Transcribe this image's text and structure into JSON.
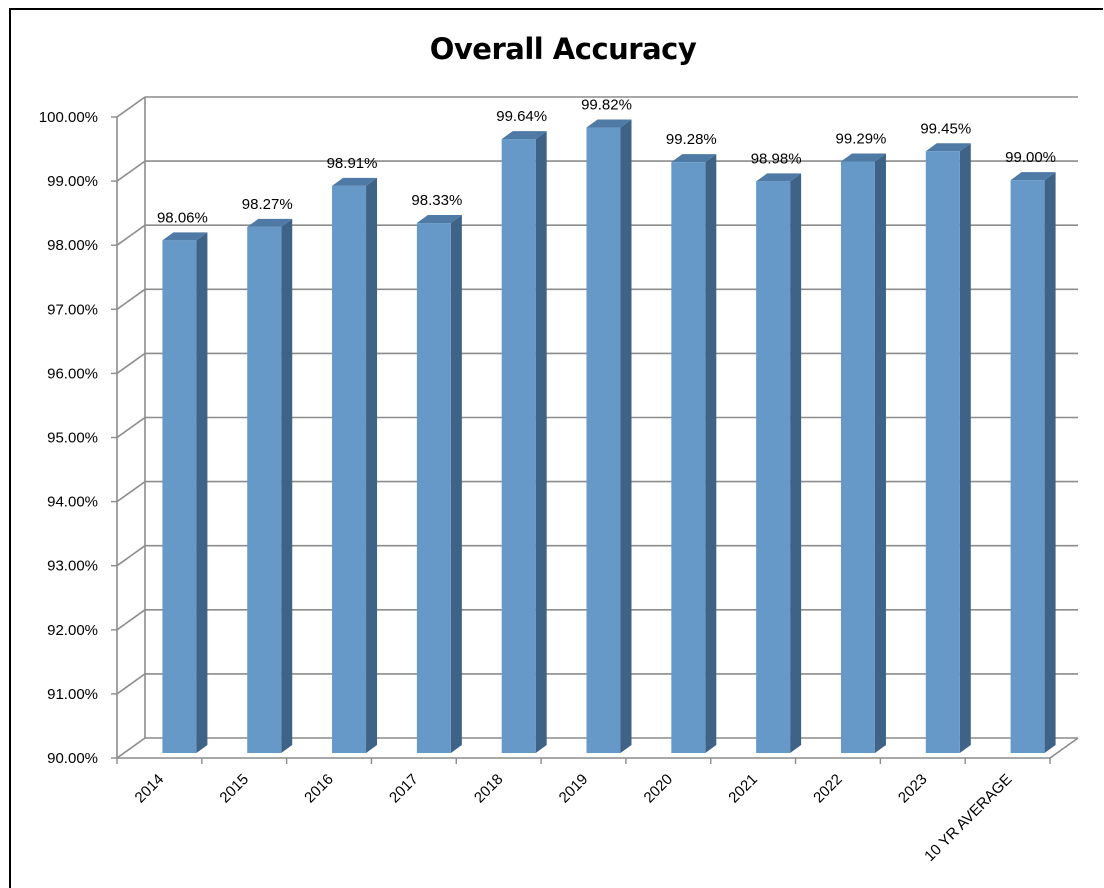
{
  "chart_data": {
    "type": "bar",
    "title": "Overall Accuracy",
    "xlabel": "",
    "ylabel": "",
    "categories": [
      "2014",
      "2015",
      "2016",
      "2017",
      "2018",
      "2019",
      "2020",
      "2021",
      "2022",
      "2023",
      "10 YR AVERAGE"
    ],
    "values": [
      98.06,
      98.27,
      98.91,
      98.33,
      99.64,
      99.82,
      99.28,
      98.98,
      99.29,
      99.45,
      99.0
    ],
    "value_labels": [
      "98.06%",
      "98.27%",
      "98.91%",
      "98.33%",
      "99.64%",
      "99.82%",
      "99.28%",
      "98.98%",
      "99.29%",
      "99.45%",
      "99.00%"
    ],
    "ylim": [
      90,
      100
    ],
    "y_ticks": [
      "90.00%",
      "91.00%",
      "92.00%",
      "93.00%",
      "94.00%",
      "95.00%",
      "96.00%",
      "97.00%",
      "98.00%",
      "99.00%",
      "100.00%"
    ],
    "grid": true,
    "style": "3d-column",
    "colors": {
      "bar_front": "#6699c8",
      "bar_side": "#3e6386",
      "bar_top": "#4f7aa5",
      "grid": "#8c8c8c"
    }
  }
}
